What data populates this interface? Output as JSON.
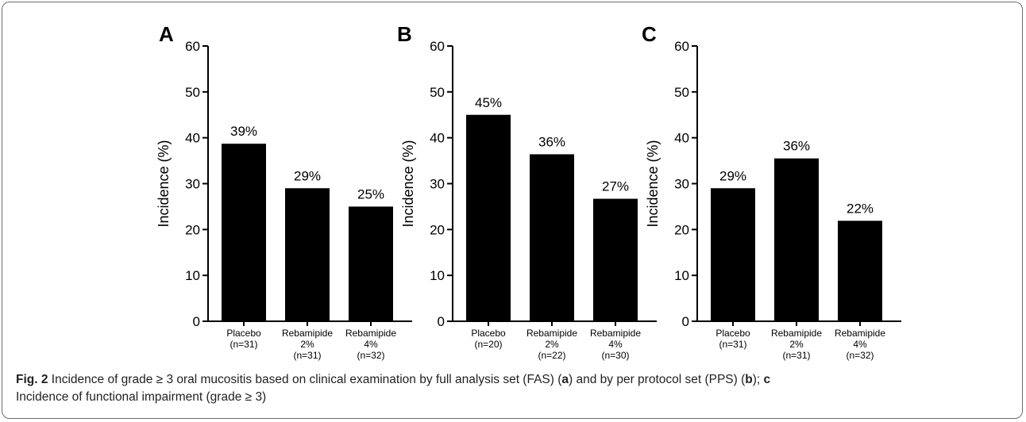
{
  "colors": {
    "bar": "#000000",
    "axis": "#000000",
    "text": "#000000",
    "frame": "#6d6d6d"
  },
  "chart_data": [
    {
      "type": "bar",
      "panel": "A",
      "ylabel": "Incidence (%)",
      "ylim": [
        0,
        60
      ],
      "yticks": [
        0,
        10,
        20,
        30,
        40,
        50,
        60
      ],
      "categories": [
        [
          "Placebo",
          "(n=31)"
        ],
        [
          "Rebamipide",
          "2%",
          "(n=31)"
        ],
        [
          "Rebamipide",
          "4%",
          "(n=32)"
        ]
      ],
      "values": [
        38.7,
        29.0,
        25.0
      ],
      "data_labels": [
        "39%",
        "29%",
        "25%"
      ]
    },
    {
      "type": "bar",
      "panel": "B",
      "ylabel": "Incidence (%)",
      "ylim": [
        0,
        60
      ],
      "yticks": [
        0,
        10,
        20,
        30,
        40,
        50,
        60
      ],
      "categories": [
        [
          "Placebo",
          "(n=20)"
        ],
        [
          "Rebamipide",
          "2%",
          "(n=22)"
        ],
        [
          "Rebamipide",
          "4%",
          "(n=30)"
        ]
      ],
      "values": [
        45.0,
        36.4,
        26.7
      ],
      "data_labels": [
        "45%",
        "36%",
        "27%"
      ]
    },
    {
      "type": "bar",
      "panel": "C",
      "ylabel": "Incidence (%)",
      "ylim": [
        0,
        60
      ],
      "yticks": [
        0,
        10,
        20,
        30,
        40,
        50,
        60
      ],
      "categories": [
        [
          "Placebo",
          "(n=31)"
        ],
        [
          "Rebamipide",
          "2%",
          "(n=31)"
        ],
        [
          "Rebamipide",
          "4%",
          "(n=32)"
        ]
      ],
      "values": [
        29.0,
        35.5,
        21.9
      ],
      "data_labels": [
        "29%",
        "36%",
        "22%"
      ]
    }
  ],
  "caption": {
    "fig_label": "Fig. 2",
    "text_1": " Incidence of grade ≥ 3 oral mucositis based on clinical examination by full analysis set (FAS) (",
    "ref_a": "a",
    "text_2": ") and by per protocol set (PPS) (",
    "ref_b": "b",
    "text_3": "); ",
    "ref_c": "c",
    "text_4": "Incidence of functional impairment (grade ≥ 3)"
  }
}
